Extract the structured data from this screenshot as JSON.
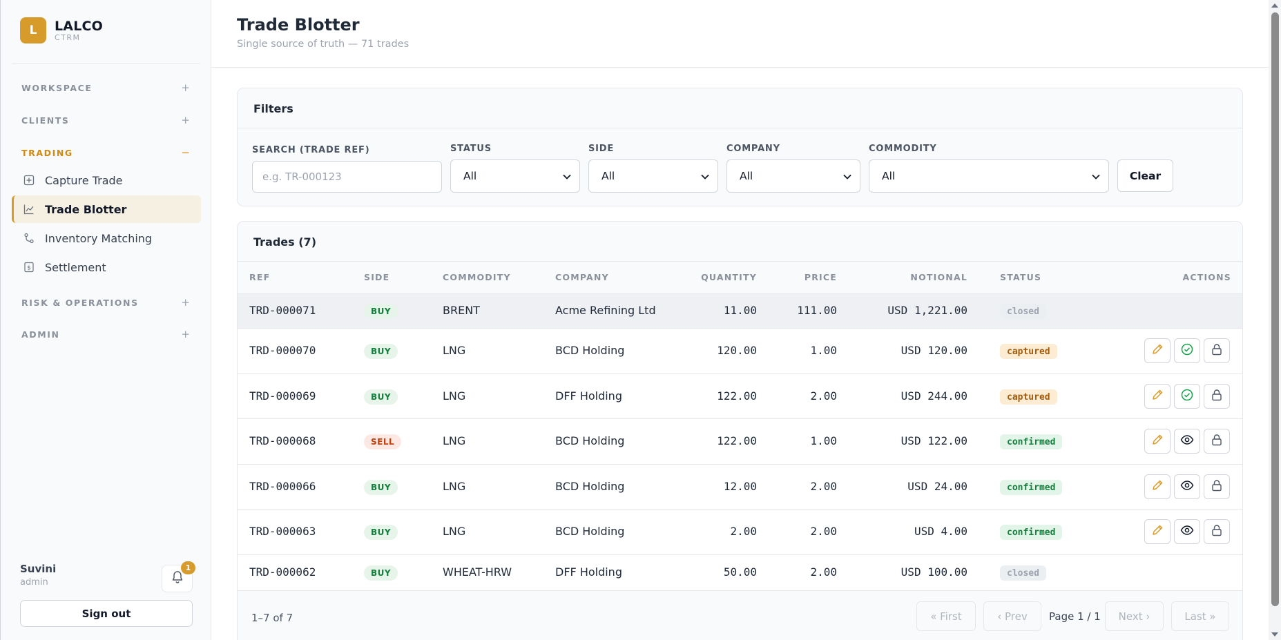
{
  "brand": {
    "logo_letter": "L",
    "name": "LALCO",
    "sub": "CTRM"
  },
  "sidebar": {
    "sections": [
      {
        "label": "WORKSPACE",
        "toggle": "+"
      },
      {
        "label": "CLIENTS",
        "toggle": "+"
      },
      {
        "label": "TRADING",
        "toggle": "−"
      },
      {
        "label": "RISK & OPERATIONS",
        "toggle": "+"
      },
      {
        "label": "ADMIN",
        "toggle": "+"
      }
    ],
    "trading_items": [
      {
        "label": "Capture Trade",
        "icon": "plus-square-icon"
      },
      {
        "label": "Trade Blotter",
        "icon": "chart-line-icon",
        "active": true
      },
      {
        "label": "Inventory Matching",
        "icon": "git-branch-icon"
      },
      {
        "label": "Settlement",
        "icon": "dollar-doc-icon"
      }
    ],
    "accent_color": "#d79b2c"
  },
  "user": {
    "name": "Suvini",
    "role": "admin",
    "notifications": "1",
    "sign_out": "Sign out"
  },
  "header": {
    "title": "Trade Blotter",
    "subtitle": "Single source of truth — 71 trades"
  },
  "filters": {
    "title": "Filters",
    "search_label": "SEARCH (TRADE REF)",
    "search_placeholder": "e.g. TR-000123",
    "status_label": "STATUS",
    "status_value": "All",
    "side_label": "SIDE",
    "side_value": "All",
    "company_label": "COMPANY",
    "company_value": "All",
    "commodity_label": "COMMODITY",
    "commodity_value": "All",
    "clear_label": "Clear"
  },
  "trades": {
    "title": "Trades (7)",
    "columns": {
      "ref": "REF",
      "side": "SIDE",
      "commodity": "COMMODITY",
      "company": "COMPANY",
      "quantity": "QUANTITY",
      "price": "PRICE",
      "notional": "NOTIONAL",
      "status": "STATUS",
      "actions": "ACTIONS"
    },
    "rows": [
      {
        "ref": "TRD-000071",
        "side": "BUY",
        "commodity": "BRENT",
        "company": "Acme Refining Ltd",
        "quantity": "11.00",
        "price": "111.00",
        "notional": "USD 1,221.00",
        "status": "closed"
      },
      {
        "ref": "TRD-000070",
        "side": "BUY",
        "commodity": "LNG",
        "company": "BCD Holding",
        "quantity": "120.00",
        "price": "1.00",
        "notional": "USD 120.00",
        "status": "captured"
      },
      {
        "ref": "TRD-000069",
        "side": "BUY",
        "commodity": "LNG",
        "company": "DFF Holding",
        "quantity": "122.00",
        "price": "2.00",
        "notional": "USD 244.00",
        "status": "captured"
      },
      {
        "ref": "TRD-000068",
        "side": "SELL",
        "commodity": "LNG",
        "company": "BCD Holding",
        "quantity": "122.00",
        "price": "1.00",
        "notional": "USD 122.00",
        "status": "confirmed"
      },
      {
        "ref": "TRD-000066",
        "side": "BUY",
        "commodity": "LNG",
        "company": "BCD Holding",
        "quantity": "12.00",
        "price": "2.00",
        "notional": "USD 24.00",
        "status": "confirmed"
      },
      {
        "ref": "TRD-000063",
        "side": "BUY",
        "commodity": "LNG",
        "company": "BCD Holding",
        "quantity": "2.00",
        "price": "2.00",
        "notional": "USD 4.00",
        "status": "confirmed"
      },
      {
        "ref": "TRD-000062",
        "side": "BUY",
        "commodity": "WHEAT-HRW",
        "company": "DFF Holding",
        "quantity": "50.00",
        "price": "2.00",
        "notional": "USD 100.00",
        "status": "closed"
      }
    ]
  },
  "pagination": {
    "range": "1–7 of 7",
    "first": "« First",
    "prev": "‹ Prev",
    "page": "Page 1 / 1",
    "next": "Next ›",
    "last": "Last »"
  }
}
